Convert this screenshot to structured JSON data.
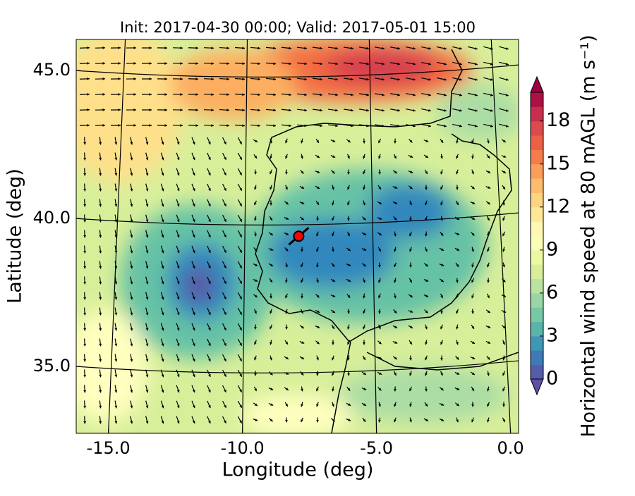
{
  "chart_data": {
    "type": "map",
    "title": "Init: 2017-04-30 00:00; Valid: 2017-05-01 15:00",
    "xlabel": "Longitude (deg)",
    "ylabel": "Latitude (deg)",
    "xlim": [
      -16.2,
      0.3
    ],
    "ylim": [
      32.74,
      46.05
    ],
    "xticks": [
      {
        "value": -15,
        "label": "-15.0"
      },
      {
        "value": -10,
        "label": "-10.0"
      },
      {
        "value": -5,
        "label": "-5.0"
      },
      {
        "value": 0,
        "label": "0.0"
      }
    ],
    "yticks": [
      {
        "value": 35,
        "label": "35.0"
      },
      {
        "value": 40,
        "label": "40.0"
      },
      {
        "value": 45,
        "label": "45.0"
      }
    ],
    "colorbar_label": "Horizontal wind speed at 80 mAGL (m s⁻¹)",
    "colorbar_lim": [
      0,
      20
    ],
    "colorbar_ticks": [
      0,
      3,
      6,
      9,
      12,
      15,
      18
    ],
    "colormap": [
      "#5e4fa2",
      "#3288bd",
      "#66c2a5",
      "#abdda4",
      "#e6f598",
      "#ffffbf",
      "#fee08b",
      "#fdae61",
      "#f46d43",
      "#d53e4f",
      "#9e0142"
    ],
    "marker": {
      "lon": -7.9,
      "lat": 39.4,
      "color": "#ff0000"
    }
  }
}
